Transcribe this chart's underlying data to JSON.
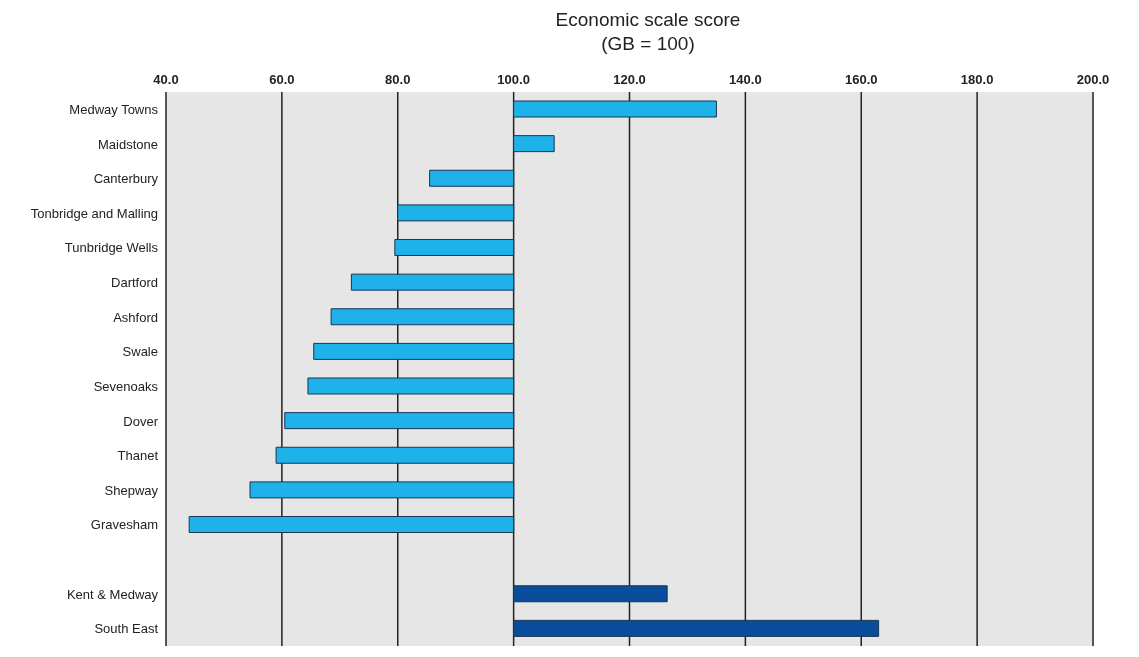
{
  "chart_data": {
    "type": "bar",
    "orientation": "horizontal",
    "xlabel": "Economic scale score\n(GB = 100)",
    "categories": [
      "Medway Towns",
      "Maidstone",
      "Canterbury",
      "Tonbridge and Malling",
      "Tunbridge Wells",
      "Dartford",
      "Ashford",
      "Swale",
      "Sevenoaks",
      "Dover",
      "Thanet",
      "Shepway",
      "Gravesham",
      null,
      "Kent & Medway",
      "South East"
    ],
    "base": [
      100,
      100,
      100,
      100,
      100,
      100,
      100,
      100,
      100,
      100,
      100,
      100,
      100,
      null,
      100,
      100
    ],
    "values": [
      35,
      7,
      -14.5,
      -20,
      -20.5,
      -28,
      -31.5,
      -34.5,
      -35.5,
      -39.5,
      -41,
      -45.5,
      -56,
      null,
      26.5,
      63
    ],
    "colors": [
      "#1fb1ea",
      "#1fb1ea",
      "#1fb1ea",
      "#1fb1ea",
      "#1fb1ea",
      "#1fb1ea",
      "#1fb1ea",
      "#1fb1ea",
      "#1fb1ea",
      "#1fb1ea",
      "#1fb1ea",
      "#1fb1ea",
      "#1fb1ea",
      "#1fb1ea",
      "#0a4c9c",
      "#0a4c9c"
    ],
    "xlim": [
      40,
      200
    ],
    "xticks": [
      {
        "value": 40,
        "label": "40.0"
      },
      {
        "value": 60,
        "label": "60.0"
      },
      {
        "value": 80,
        "label": "80.0"
      },
      {
        "value": 100,
        "label": "100.0"
      },
      {
        "value": 120,
        "label": "120.0"
      },
      {
        "value": 140,
        "label": "140.0"
      },
      {
        "value": 160,
        "label": "160.0"
      },
      {
        "value": 180,
        "label": "180.0"
      },
      {
        "value": 200,
        "label": "200.0"
      }
    ],
    "grid": "x"
  }
}
